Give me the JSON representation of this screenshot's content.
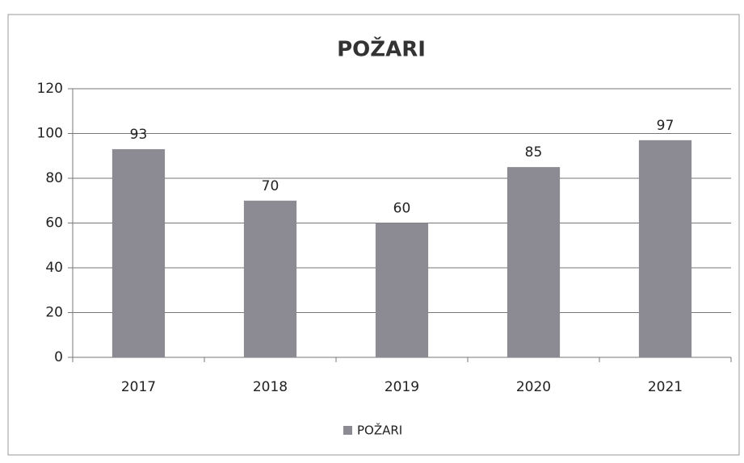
{
  "chart_data": {
    "type": "bar",
    "title": "POŽARI",
    "categories": [
      "2017",
      "2018",
      "2019",
      "2020",
      "2021"
    ],
    "series": [
      {
        "name": "POŽARI",
        "color": "#8c8b93",
        "values": [
          93,
          70,
          60,
          85,
          97
        ]
      }
    ],
    "ylim": [
      0,
      120
    ],
    "yticks": [
      0,
      20,
      40,
      60,
      80,
      100,
      120
    ],
    "grid": true,
    "legend": "bottom",
    "data_labels": true
  }
}
